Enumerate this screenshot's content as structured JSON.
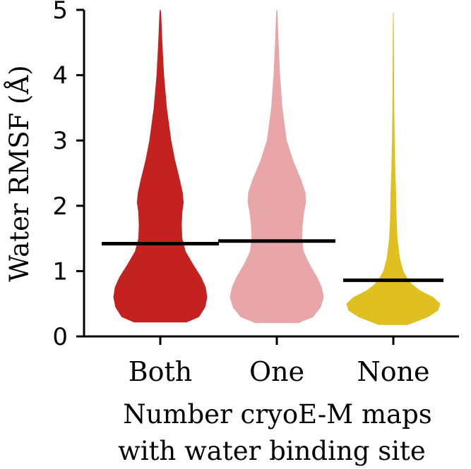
{
  "chart_data": {
    "type": "violin",
    "ylabel": "Water RMSF (Å)",
    "xlabel_line1": "Number cryoE-M maps",
    "xlabel_line2": "with water binding site",
    "ylim": [
      0,
      5
    ],
    "yticks": [
      "0",
      "1",
      "2",
      "3",
      "4",
      "5"
    ],
    "categories": [
      "Both",
      "One",
      "None"
    ],
    "series": [
      {
        "category": "Both",
        "color": "#c42121",
        "mean": 1.42,
        "min": 0.22,
        "max": 5.0,
        "profile": [
          [
            0.22,
            0.55
          ],
          [
            0.3,
            0.8
          ],
          [
            0.45,
            0.93
          ],
          [
            0.6,
            0.97
          ],
          [
            0.75,
            0.94
          ],
          [
            0.9,
            0.85
          ],
          [
            1.1,
            0.68
          ],
          [
            1.3,
            0.52
          ],
          [
            1.5,
            0.45
          ],
          [
            1.7,
            0.44
          ],
          [
            1.9,
            0.45
          ],
          [
            2.05,
            0.48
          ],
          [
            2.2,
            0.46
          ],
          [
            2.4,
            0.4
          ],
          [
            2.7,
            0.3
          ],
          [
            3.0,
            0.22
          ],
          [
            3.5,
            0.13
          ],
          [
            4.0,
            0.07
          ],
          [
            4.5,
            0.035
          ],
          [
            4.95,
            0.01
          ],
          [
            5.0,
            0.0
          ]
        ]
      },
      {
        "category": "One",
        "color": "#e8a6a8",
        "mean": 1.46,
        "min": 0.21,
        "max": 5.0,
        "profile": [
          [
            0.21,
            0.45
          ],
          [
            0.3,
            0.75
          ],
          [
            0.45,
            0.91
          ],
          [
            0.6,
            0.97
          ],
          [
            0.75,
            0.93
          ],
          [
            0.9,
            0.84
          ],
          [
            1.1,
            0.68
          ],
          [
            1.3,
            0.55
          ],
          [
            1.5,
            0.52
          ],
          [
            1.7,
            0.53
          ],
          [
            1.9,
            0.56
          ],
          [
            2.05,
            0.6
          ],
          [
            2.2,
            0.59
          ],
          [
            2.4,
            0.5
          ],
          [
            2.7,
            0.33
          ],
          [
            3.0,
            0.2
          ],
          [
            3.5,
            0.11
          ],
          [
            4.0,
            0.06
          ],
          [
            4.5,
            0.03
          ],
          [
            4.95,
            0.008
          ],
          [
            5.0,
            0.0
          ]
        ]
      },
      {
        "category": "None",
        "color": "#e0c021",
        "mean": 0.86,
        "min": 0.18,
        "max": 4.95,
        "profile": [
          [
            0.18,
            0.3
          ],
          [
            0.3,
            0.72
          ],
          [
            0.4,
            0.93
          ],
          [
            0.5,
            0.97
          ],
          [
            0.6,
            0.82
          ],
          [
            0.7,
            0.55
          ],
          [
            0.8,
            0.38
          ],
          [
            0.9,
            0.28
          ],
          [
            1.0,
            0.2
          ],
          [
            1.2,
            0.13
          ],
          [
            1.5,
            0.08
          ],
          [
            1.8,
            0.06
          ],
          [
            2.0,
            0.055
          ],
          [
            2.2,
            0.05
          ],
          [
            2.5,
            0.035
          ],
          [
            3.0,
            0.02
          ],
          [
            3.5,
            0.012
          ],
          [
            4.0,
            0.007
          ],
          [
            4.5,
            0.004
          ],
          [
            4.95,
            0.0
          ]
        ]
      }
    ],
    "mean_line_color": "#000000"
  }
}
